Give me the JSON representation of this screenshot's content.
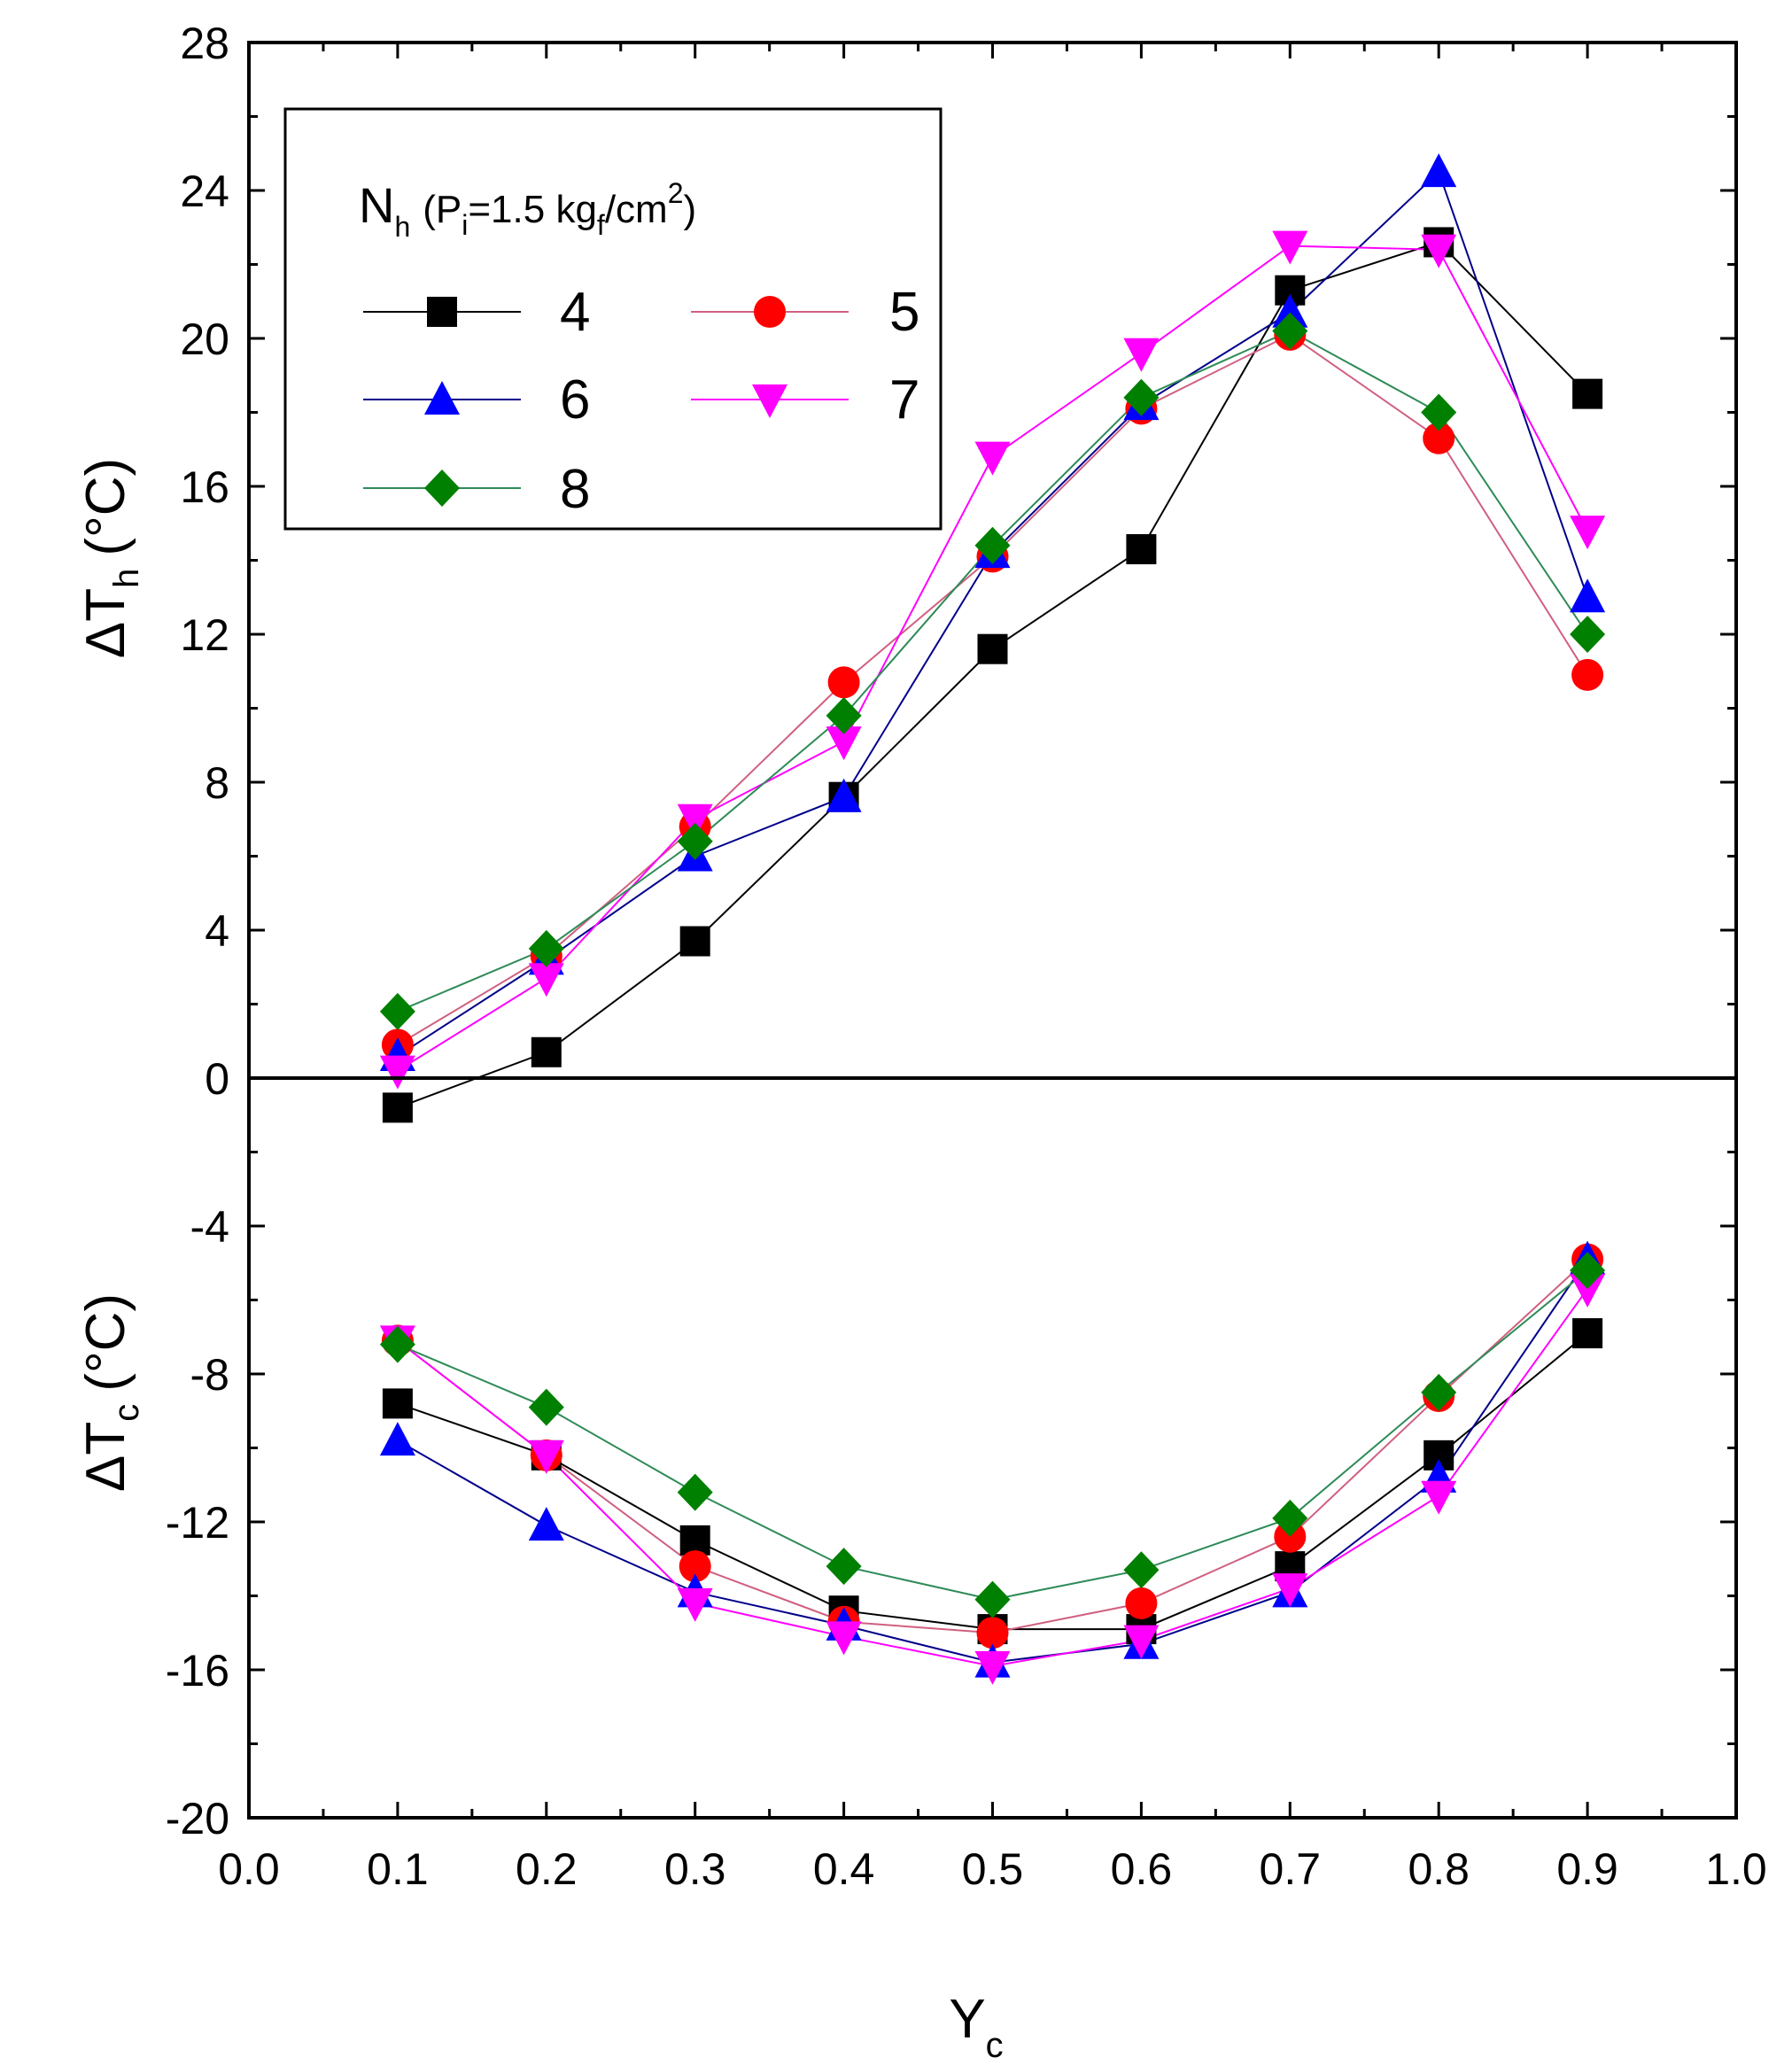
{
  "chart_data": {
    "type": "line",
    "title": "",
    "xlabel": "Y",
    "xlabel_sub": "c",
    "ylabel_upper": "ΔT",
    "ylabel_upper_sub": "h",
    "ylabel_upper_unit": "(°C)",
    "ylabel_lower": "ΔT",
    "ylabel_lower_sub": "c",
    "ylabel_lower_unit": "(°C)",
    "xlim": [
      0.0,
      1.0
    ],
    "ylim": [
      -20,
      28
    ],
    "xticks": [
      "0.0",
      "0.1",
      "0.2",
      "0.3",
      "0.4",
      "0.5",
      "0.6",
      "0.7",
      "0.8",
      "0.9",
      "1.0"
    ],
    "yticks": [
      "-20",
      "-16",
      "-12",
      "-8",
      "-4",
      "0",
      "4",
      "8",
      "12",
      "16",
      "20",
      "24",
      "28"
    ],
    "xtick_values": [
      0.0,
      0.1,
      0.2,
      0.3,
      0.4,
      0.5,
      0.6,
      0.7,
      0.8,
      0.9,
      1.0
    ],
    "ytick_values": [
      -20,
      -16,
      -12,
      -8,
      -4,
      0,
      4,
      8,
      12,
      16,
      20,
      24,
      28
    ],
    "legend": {
      "title_main": "N",
      "title_main_sub": "h",
      "title_open": "(P",
      "title_p_sub": "i",
      "title_mid": "=1.5 kg",
      "title_f_sub": "f",
      "title_unit": "/cm",
      "title_sup": "2",
      "title_close": ")",
      "placement": "top-left"
    },
    "x": [
      0.1,
      0.2,
      0.3,
      0.4,
      0.5,
      0.6,
      0.7,
      0.8,
      0.9
    ],
    "series": [
      {
        "name": "4",
        "marker": "square",
        "color": "#000000",
        "line_color": "#000000",
        "hot": [
          -0.8,
          0.7,
          3.7,
          7.6,
          11.6,
          14.3,
          21.3,
          22.6,
          18.5
        ],
        "cold": [
          -8.8,
          -10.2,
          -12.5,
          -14.4,
          -14.9,
          -14.9,
          -13.2,
          -10.2,
          -6.9
        ]
      },
      {
        "name": "5",
        "marker": "circle",
        "color": "#ff0000",
        "line_color": "#d06080",
        "hot": [
          0.9,
          3.3,
          6.8,
          10.7,
          14.1,
          18.1,
          20.1,
          17.3,
          10.9
        ],
        "cold": [
          -7.1,
          -10.2,
          -13.2,
          -14.7,
          -15.0,
          -14.2,
          -12.4,
          -8.6,
          -4.9
        ]
      },
      {
        "name": "6",
        "marker": "triangle-up",
        "color": "#0000ff",
        "line_color": "#00008b",
        "hot": [
          0.6,
          3.2,
          6.0,
          7.6,
          14.2,
          18.2,
          20.7,
          24.5,
          13.0
        ],
        "cold": [
          -9.8,
          -12.1,
          -13.9,
          -14.8,
          -15.8,
          -15.3,
          -13.9,
          -10.8,
          -4.9
        ]
      },
      {
        "name": "7",
        "marker": "triangle-down",
        "color": "#ff00ff",
        "line_color": "#ff00ff",
        "hot": [
          0.2,
          2.7,
          7.0,
          9.1,
          16.8,
          19.6,
          22.5,
          22.4,
          14.8
        ],
        "cold": [
          -7.1,
          -10.2,
          -14.2,
          -15.1,
          -15.9,
          -15.2,
          -13.8,
          -11.3,
          -5.7
        ]
      },
      {
        "name": "8",
        "marker": "diamond",
        "color": "#008000",
        "line_color": "#2e8b57",
        "hot": [
          1.8,
          3.5,
          6.4,
          9.8,
          14.4,
          18.4,
          20.2,
          18.0,
          12.0
        ],
        "cold": [
          -7.2,
          -8.9,
          -11.2,
          -13.2,
          -14.1,
          -13.3,
          -11.9,
          -8.5,
          -5.2
        ]
      }
    ]
  }
}
